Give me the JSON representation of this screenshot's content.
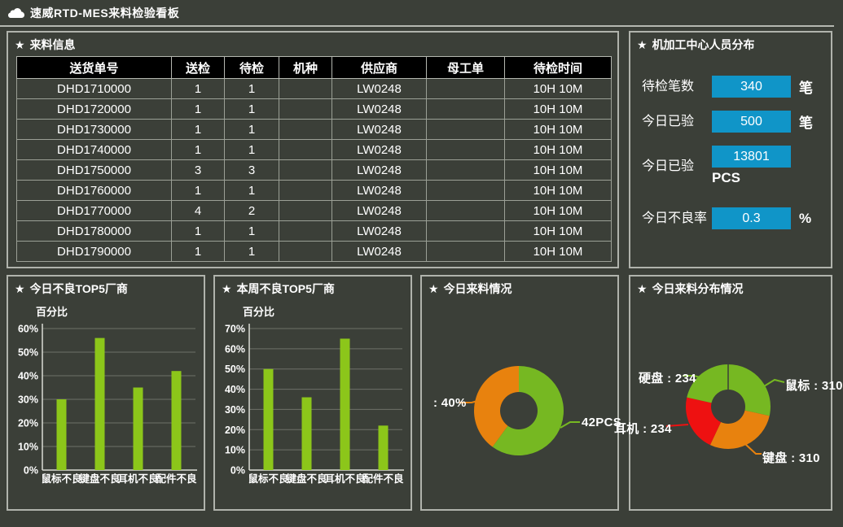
{
  "titlebar": {
    "title": "速威RTD-MES来料检验看板"
  },
  "colors": {
    "background": "#3b3f38",
    "panel_border": "#b0b3ac",
    "accent_blue": "#1095c8",
    "bar_green": "#8cc61a",
    "pie_green": "#76b822",
    "pie_orange": "#e8820e",
    "pie_red": "#ee1111",
    "table_header_bg": "#000000",
    "grid_line": "#6e7168"
  },
  "panels": {
    "incoming": {
      "title": "来料信息",
      "table": {
        "headers": [
          "送货单号",
          "送检",
          "待检",
          "机种",
          "供应商",
          "母工单",
          "待检时间"
        ],
        "rows": [
          [
            "DHD1710000",
            "1",
            "1",
            "",
            "LW0248",
            "",
            "10H 10M"
          ],
          [
            "DHD1720000",
            "1",
            "1",
            "",
            "LW0248",
            "",
            "10H 10M"
          ],
          [
            "DHD1730000",
            "1",
            "1",
            "",
            "LW0248",
            "",
            "10H 10M"
          ],
          [
            "DHD1740000",
            "1",
            "1",
            "",
            "LW0248",
            "",
            "10H 10M"
          ],
          [
            "DHD1750000",
            "3",
            "3",
            "",
            "LW0248",
            "",
            "10H 10M"
          ],
          [
            "DHD1760000",
            "1",
            "1",
            "",
            "LW0248",
            "",
            "10H 10M"
          ],
          [
            "DHD1770000",
            "4",
            "2",
            "",
            "LW0248",
            "",
            "10H 10M"
          ],
          [
            "DHD1780000",
            "1",
            "1",
            "",
            "LW0248",
            "",
            "10H 10M"
          ],
          [
            "DHD1790000",
            "1",
            "1",
            "",
            "LW0248",
            "",
            "10H 10M"
          ]
        ]
      }
    },
    "staff": {
      "title": "机加工中心人员分布",
      "stats": [
        {
          "label": "待检笔数",
          "value": "340",
          "unit": "笔",
          "unit_below": false
        },
        {
          "label": "今日已验",
          "value": "500",
          "unit": "笔",
          "unit_below": false
        },
        {
          "label": "今日已验",
          "value": "13801",
          "unit": "PCS",
          "unit_below": true
        },
        {
          "label": "今日不良率",
          "value": "0.3",
          "unit": "%",
          "unit_below": false
        }
      ]
    }
  },
  "chart_data": [
    {
      "type": "bar",
      "title": "今日不良TOP5厂商",
      "ylabel": "百分比",
      "categories": [
        "鼠标不良",
        "键盘不良",
        "耳机不良",
        "配件不良"
      ],
      "values": [
        30,
        56,
        35,
        42
      ],
      "ylim": [
        0,
        60
      ],
      "ytick_step": 10,
      "tick_suffix": "%",
      "bar_color": "#8cc61a",
      "grid": true
    },
    {
      "type": "bar",
      "title": "本周不良TOP5厂商",
      "ylabel": "百分比",
      "categories": [
        "鼠标不良",
        "键盘不良",
        "耳机不良",
        "配件不良"
      ],
      "values": [
        50,
        36,
        65,
        22
      ],
      "ylim": [
        0,
        70
      ],
      "ytick_step": 10,
      "tick_suffix": "%",
      "bar_color": "#8cc61a",
      "grid": true
    },
    {
      "type": "pie",
      "title": "今日来料情况",
      "donut": true,
      "slices": [
        {
          "label": "42PCS",
          "value": 60,
          "color": "#76b822"
        },
        {
          "label": ": 40%",
          "value": 40,
          "color": "#e8820e"
        }
      ]
    },
    {
      "type": "pie",
      "title": "今日来料分布情况",
      "donut": true,
      "slices": [
        {
          "label": "鼠标 : 310",
          "value": 310,
          "color": "#76b822"
        },
        {
          "label": "键盘 : 310",
          "value": 310,
          "color": "#e8820e"
        },
        {
          "label": "耳机 : 234",
          "value": 234,
          "color": "#ee1111"
        },
        {
          "label": "硬盘 : 234",
          "value": 234,
          "color": "#76b822"
        }
      ]
    }
  ]
}
